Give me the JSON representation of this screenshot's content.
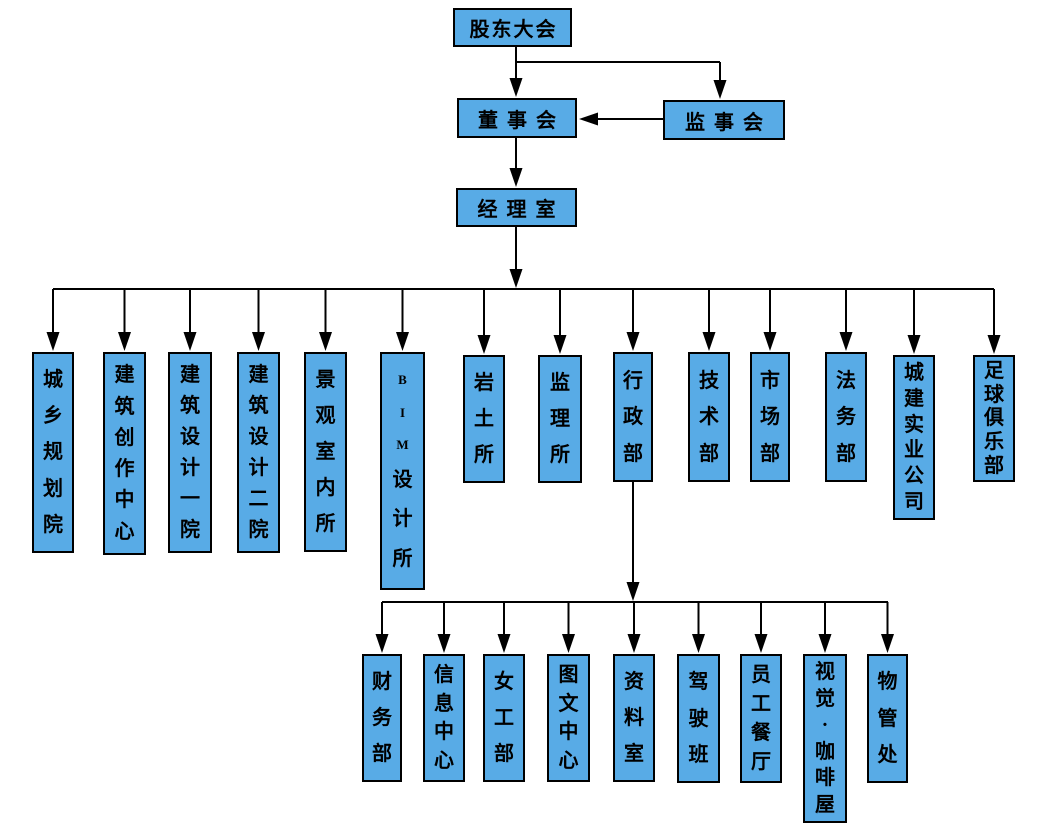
{
  "colors": {
    "box_fill": "#58ABE6",
    "box_border": "#000000",
    "connector": "#000000",
    "text": "#000000",
    "background": "#FFFFFF"
  },
  "org_chart": {
    "top_nodes": [
      {
        "id": "shareholders-meeting",
        "label": "股东大会"
      },
      {
        "id": "board-of-directors",
        "label": "董事会"
      },
      {
        "id": "supervisory-board",
        "label": "监事会"
      },
      {
        "id": "managers-office",
        "label": "经理室"
      }
    ],
    "departments": [
      {
        "label": "城乡规划院"
      },
      {
        "label": "建筑创作中心"
      },
      {
        "label": "建筑设计一院"
      },
      {
        "label": "建筑设计二院"
      },
      {
        "label": "景观室内所"
      },
      {
        "label": "BIM设计所"
      },
      {
        "label": "岩土所"
      },
      {
        "label": "监理所"
      },
      {
        "label": "行政部"
      },
      {
        "label": "技术部"
      },
      {
        "label": "市场部"
      },
      {
        "label": "法务部"
      },
      {
        "label": "城建实业公司"
      },
      {
        "label": "足球俱乐部"
      }
    ],
    "admin_departments": [
      {
        "label": "财务部"
      },
      {
        "label": "信息中心"
      },
      {
        "label": "女工部"
      },
      {
        "label": "图文中心"
      },
      {
        "label": "资料室"
      },
      {
        "label": "驾驶班"
      },
      {
        "label": "员工餐厅"
      },
      {
        "label": "视觉·咖啡屋"
      },
      {
        "label": "物管处"
      }
    ]
  }
}
